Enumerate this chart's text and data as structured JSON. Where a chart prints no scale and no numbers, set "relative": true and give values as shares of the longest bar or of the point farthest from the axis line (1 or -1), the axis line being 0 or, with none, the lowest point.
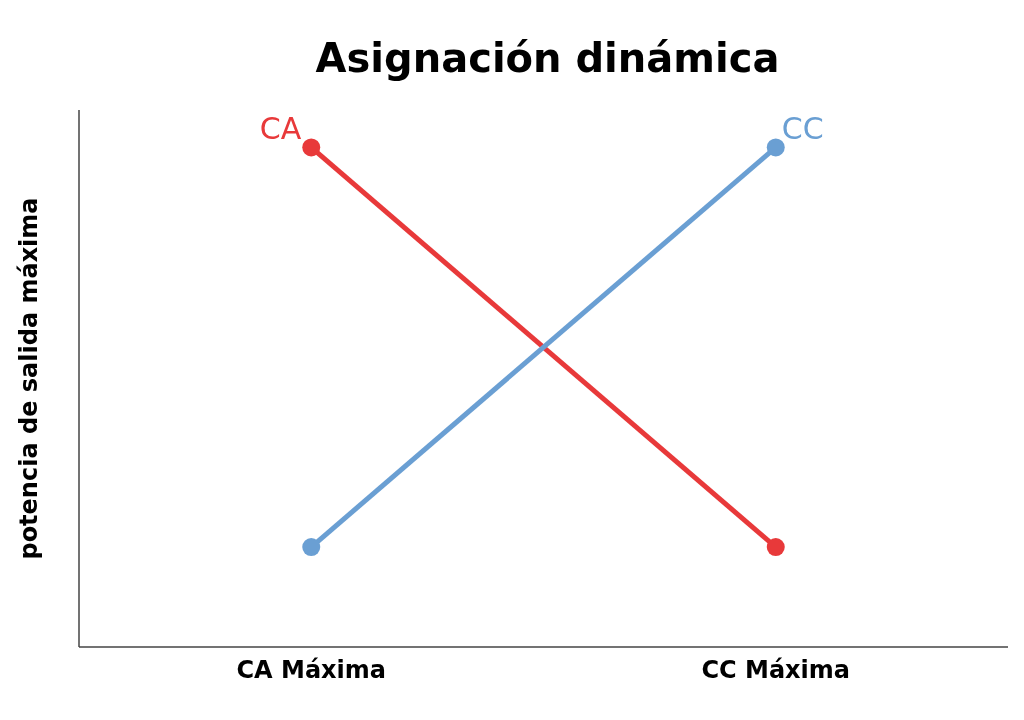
{
  "chart_data": {
    "type": "line",
    "title": "Asignación dinámica",
    "ylabel": "potencia de salida máxima",
    "categories": [
      "CA Máxima",
      "CC Máxima"
    ],
    "relative": true,
    "marker": "circle",
    "legend": false,
    "grid": false,
    "series": [
      {
        "name": "CA",
        "color": "#e8393a",
        "values": [
          1,
          0.2
        ]
      },
      {
        "name": "CC",
        "color": "#6a9fd3",
        "values": [
          0.2,
          1
        ]
      }
    ]
  }
}
